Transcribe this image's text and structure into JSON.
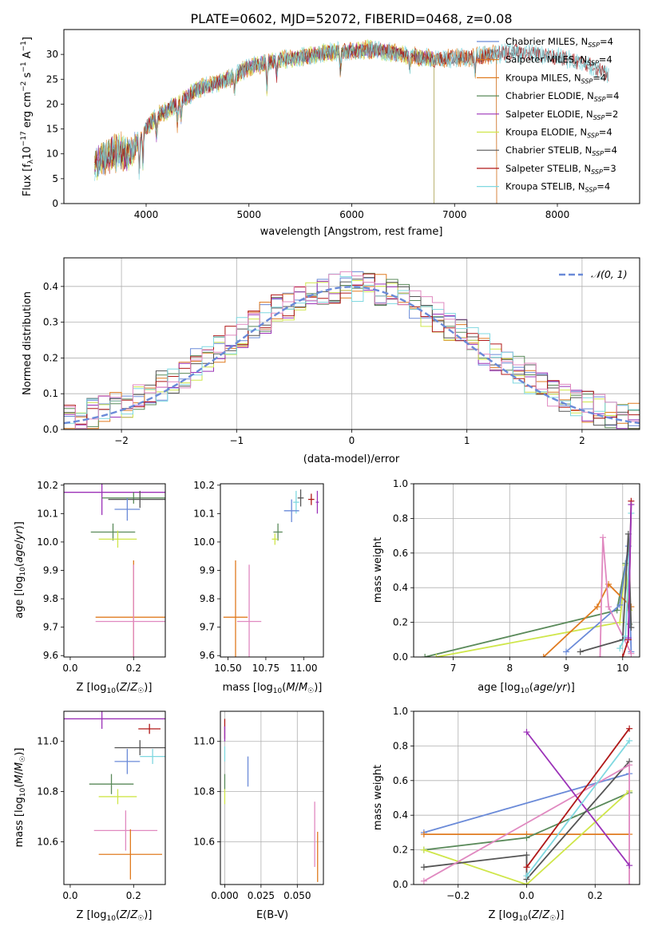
{
  "figure": {
    "title": "PLATE=0602, MJD=52072, FIBERID=0468, z=0.08"
  },
  "colors": {
    "c0": "#6a8ad8",
    "c1": "#e07b20",
    "c2": "#5a8a5a",
    "c3": "#9b32b8",
    "c4": "#cfe64a",
    "c5": "#555555",
    "c6": "#b01818",
    "c7": "#7fd8e0",
    "c8": "#e089c0",
    "grid": "#b0b0b0",
    "normal": "#6a8ad8"
  },
  "chart_data": [
    {
      "id": "spectrum",
      "type": "line",
      "xlabel": "wavelength [Angstrom, rest frame]",
      "ylabel": "Flux [f_λ10^-17 erg cm^-2 s^-1 A^-1]",
      "xlim": [
        3200,
        8800
      ],
      "ylim": [
        0,
        35
      ],
      "xticks": [
        4000,
        5000,
        6000,
        7000,
        8000
      ],
      "yticks": [
        0,
        5,
        10,
        15,
        20,
        25,
        30
      ],
      "grid": false,
      "legend_position": "top-right",
      "series": [
        {
          "name": "Chabrier MILES, N_SSP=4",
          "color_key": "c0",
          "end": 7410
        },
        {
          "name": "Salpeter MILES, N_SSP=4",
          "color_key": "c1",
          "end": 7410
        },
        {
          "name": "Kroupa MILES, N_SSP=4",
          "color_key": "c1",
          "end": 7410
        },
        {
          "name": "Chabrier ELODIE, N_SSP=4",
          "color_key": "c2",
          "end": 6800
        },
        {
          "name": "Salpeter ELODIE, N_SSP=2",
          "color_key": "c3",
          "end": 6800
        },
        {
          "name": "Kroupa ELODIE, N_SSP=4",
          "color_key": "c4",
          "end": 6800
        },
        {
          "name": "Chabrier STELIB, N_SSP=4",
          "color_key": "c5",
          "end": 8500
        },
        {
          "name": "Salpeter STELIB, N_SSP=3",
          "color_key": "c6",
          "end": 8500
        },
        {
          "name": "Kroupa STELIB, N_SSP=4",
          "color_key": "c7",
          "end": 8500
        }
      ],
      "continuum": [
        [
          3500,
          8.0
        ],
        [
          3700,
          10.5
        ],
        [
          3850,
          10.0
        ],
        [
          3950,
          14.0
        ],
        [
          4100,
          17.5
        ],
        [
          4300,
          20.0
        ],
        [
          4500,
          23.0
        ],
        [
          4800,
          25.0
        ],
        [
          5000,
          27.5
        ],
        [
          5200,
          28.5
        ],
        [
          5500,
          29.5
        ],
        [
          5800,
          30.5
        ],
        [
          6200,
          31.0
        ],
        [
          6500,
          30.0
        ],
        [
          6800,
          29.0
        ],
        [
          7200,
          29.5
        ],
        [
          7600,
          30.5
        ],
        [
          8000,
          29.5
        ],
        [
          8300,
          28.0
        ],
        [
          8500,
          26.0
        ]
      ],
      "absorption_lines": [
        [
          3934,
          7.0
        ],
        [
          3969,
          7.0
        ],
        [
          4102,
          4.0
        ],
        [
          4304,
          4.0
        ],
        [
          4340,
          3.5
        ],
        [
          4861,
          3.0
        ],
        [
          5175,
          5.0
        ],
        [
          5270,
          3.0
        ],
        [
          5890,
          4.0
        ],
        [
          6563,
          3.0
        ],
        [
          7200,
          3.0
        ]
      ]
    },
    {
      "id": "residual_hist",
      "type": "histogram",
      "xlabel": "(data-model)/error",
      "ylabel": "Normed distribution",
      "xlim": [
        -2.5,
        2.5
      ],
      "ylim": [
        0,
        0.48
      ],
      "xticks": [
        -2,
        -1,
        0,
        1,
        2
      ],
      "yticks": [
        0.0,
        0.1,
        0.2,
        0.3,
        0.4
      ],
      "grid": true,
      "legend_position": "top-right",
      "legend": [
        {
          "label": "N(0,1)",
          "style": "dashed"
        }
      ],
      "bin_edges_start": -2.5,
      "bin_width": 0.1,
      "series_color_keys": [
        "c0",
        "c1",
        "c2",
        "c3",
        "c4",
        "c5",
        "c6",
        "c7",
        "c8"
      ]
    },
    {
      "id": "age_vs_Z",
      "type": "scatter",
      "xlabel": "Z [log10(Z/Z☉)]",
      "ylabel": "age [log10(age/yr)]",
      "xlim": [
        -0.02,
        0.3
      ],
      "ylim": [
        9.595,
        10.205
      ],
      "xticks": [
        0.0,
        0.2
      ],
      "yticks": [
        9.6,
        9.7,
        9.8,
        9.9,
        10.0,
        10.1,
        10.2
      ],
      "grid": false,
      "points": [
        {
          "color_key": "c3",
          "x": 0.1,
          "xerr": 0.2,
          "y": 10.175,
          "yerr": 0.08
        },
        {
          "color_key": "c2",
          "x": 0.2,
          "xerr": 0.1,
          "y": 10.155,
          "yerr": 0.02
        },
        {
          "color_key": "c5",
          "x": 0.22,
          "xerr": 0.1,
          "y": 10.15,
          "yerr": 0.03
        },
        {
          "color_key": "c0",
          "x": 0.18,
          "xerr": 0.04,
          "y": 10.115,
          "yerr": 0.04
        },
        {
          "color_key": "c2",
          "x": 0.135,
          "xerr": 0.07,
          "y": 10.035,
          "yerr": 0.03
        },
        {
          "color_key": "c4",
          "x": 0.15,
          "xerr": 0.06,
          "y": 10.01,
          "yerr": 0.03
        },
        {
          "color_key": "c1",
          "x": 0.2,
          "xerr": 0.12,
          "y": 9.735,
          "yerr": 0.2
        },
        {
          "color_key": "c8",
          "x": 0.2,
          "xerr": 0.12,
          "y": 9.72,
          "yerr": 0.2
        }
      ]
    },
    {
      "id": "age_vs_mass",
      "type": "scatter",
      "xlabel": "mass [log10(M/M☉)]",
      "ylabel": "",
      "xlim": [
        10.45,
        11.13
      ],
      "ylim": [
        9.595,
        10.205
      ],
      "xticks": [
        10.5,
        10.75,
        11.0
      ],
      "yticks": [
        9.6,
        9.7,
        9.8,
        9.9,
        10.0,
        10.1,
        10.2
      ],
      "grid": false,
      "points": [
        {
          "color_key": "c5",
          "x": 10.98,
          "xerr": 0.02,
          "y": 10.155,
          "yerr": 0.03
        },
        {
          "color_key": "c6",
          "x": 11.05,
          "xerr": 0.02,
          "y": 10.15,
          "yerr": 0.02
        },
        {
          "color_key": "c3",
          "x": 11.09,
          "xerr": 0.01,
          "y": 10.14,
          "yerr": 0.04
        },
        {
          "color_key": "c7",
          "x": 10.95,
          "xerr": 0.02,
          "y": 10.14,
          "yerr": 0.04
        },
        {
          "color_key": "c0",
          "x": 10.92,
          "xerr": 0.05,
          "y": 10.11,
          "yerr": 0.04
        },
        {
          "color_key": "c2",
          "x": 10.83,
          "xerr": 0.03,
          "y": 10.035,
          "yerr": 0.03
        },
        {
          "color_key": "c4",
          "x": 10.81,
          "xerr": 0.02,
          "y": 10.01,
          "yerr": 0.02
        },
        {
          "color_key": "c1",
          "x": 10.55,
          "xerr": 0.08,
          "y": 9.735,
          "yerr": 0.2
        },
        {
          "color_key": "c8",
          "x": 10.64,
          "xerr": 0.08,
          "y": 9.72,
          "yerr": 0.2
        }
      ]
    },
    {
      "id": "weight_vs_age",
      "type": "line",
      "xlabel": "age [log10(age/yr)]",
      "ylabel": "mass weight",
      "xlim": [
        6.3,
        10.3
      ],
      "ylim": [
        0.0,
        1.0
      ],
      "xticks": [
        7,
        8,
        9,
        10
      ],
      "yticks": [
        0.0,
        0.2,
        0.4,
        0.6,
        0.8,
        1.0
      ],
      "grid": true,
      "series": [
        {
          "color_key": "c2",
          "x": [
            6.5,
            9.9,
            10.05,
            10.12
          ],
          "y": [
            0.0,
            0.27,
            0.54,
            0.19
          ]
        },
        {
          "color_key": "c4",
          "x": [
            6.7,
            9.95,
            10.05,
            10.12
          ],
          "y": [
            0.0,
            0.2,
            0.53,
            0.27
          ]
        },
        {
          "color_key": "c1",
          "x": [
            8.6,
            9.55,
            9.75,
            10.15
          ],
          "y": [
            0.0,
            0.29,
            0.42,
            0.29
          ]
        },
        {
          "color_key": "c0",
          "x": [
            9.0,
            9.95,
            10.1,
            10.15
          ],
          "y": [
            0.03,
            0.3,
            0.64,
            0.03
          ]
        },
        {
          "color_key": "c8",
          "x": [
            9.6,
            9.65,
            9.75,
            10.15
          ],
          "y": [
            0.0,
            0.69,
            0.29,
            0.02
          ]
        },
        {
          "color_key": "c5",
          "x": [
            9.25,
            10.0,
            10.1,
            10.15
          ],
          "y": [
            0.03,
            0.1,
            0.71,
            0.17
          ]
        },
        {
          "color_key": "c7",
          "x": [
            9.95,
            10.05,
            10.15
          ],
          "y": [
            0.05,
            0.12,
            0.83
          ]
        },
        {
          "color_key": "c6",
          "x": [
            10.0,
            10.1,
            10.15
          ],
          "y": [
            0.0,
            0.1,
            0.9
          ]
        },
        {
          "color_key": "c3",
          "x": [
            10.1,
            10.15
          ],
          "y": [
            0.11,
            0.88
          ]
        }
      ]
    },
    {
      "id": "mass_vs_Z",
      "type": "scatter",
      "xlabel": "Z [log10(Z/Z☉)]",
      "ylabel": "mass [log10(M/M☉)]",
      "xlim": [
        -0.02,
        0.3
      ],
      "ylim": [
        10.43,
        11.12
      ],
      "xticks": [
        0.0,
        0.2
      ],
      "yticks": [
        10.6,
        10.8,
        11.0
      ],
      "grid": false,
      "points": [
        {
          "color_key": "c3",
          "x": 0.1,
          "xerr": 0.2,
          "y": 11.09,
          "yerr": 0.04
        },
        {
          "color_key": "c6",
          "x": 0.25,
          "xerr": 0.035,
          "y": 11.05,
          "yerr": 0.02
        },
        {
          "color_key": "c5",
          "x": 0.22,
          "xerr": 0.08,
          "y": 10.975,
          "yerr": 0.03
        },
        {
          "color_key": "c7",
          "x": 0.26,
          "xerr": 0.04,
          "y": 10.94,
          "yerr": 0.03
        },
        {
          "color_key": "c0",
          "x": 0.18,
          "xerr": 0.04,
          "y": 10.92,
          "yerr": 0.05
        },
        {
          "color_key": "c2",
          "x": 0.13,
          "xerr": 0.07,
          "y": 10.83,
          "yerr": 0.04
        },
        {
          "color_key": "c4",
          "x": 0.15,
          "xerr": 0.06,
          "y": 10.78,
          "yerr": 0.03
        },
        {
          "color_key": "c8",
          "x": 0.175,
          "xerr": 0.1,
          "y": 10.645,
          "yerr": 0.08
        },
        {
          "color_key": "c1",
          "x": 0.19,
          "xerr": 0.1,
          "y": 10.55,
          "yerr": 0.1
        }
      ]
    },
    {
      "id": "mass_vs_EBV",
      "type": "scatter",
      "xlabel": "E(B-V)",
      "ylabel": "",
      "xlim": [
        -0.003,
        0.068
      ],
      "ylim": [
        10.43,
        11.12
      ],
      "xticks": [
        0.0,
        0.025,
        0.05
      ],
      "yticks": [
        10.6,
        10.8,
        11.0
      ],
      "grid": true,
      "points": [
        {
          "color_key": "c6",
          "x": 0.0,
          "xerr": 0.0,
          "y": 11.05,
          "yerr": 0.04
        },
        {
          "color_key": "c3",
          "x": 0.0,
          "xerr": 0.0,
          "y": 11.03,
          "yerr": 0.03
        },
        {
          "color_key": "c7",
          "x": 0.0,
          "xerr": 0.0,
          "y": 10.95,
          "yerr": 0.03
        },
        {
          "color_key": "c2",
          "x": 0.0,
          "xerr": 0.0,
          "y": 10.84,
          "yerr": 0.03
        },
        {
          "color_key": "c4",
          "x": 0.0,
          "xerr": 0.0,
          "y": 10.78,
          "yerr": 0.03
        },
        {
          "color_key": "c0",
          "x": 0.016,
          "xerr": 0.0,
          "y": 10.88,
          "yerr": 0.06
        },
        {
          "color_key": "c8",
          "x": 0.062,
          "xerr": 0.0,
          "y": 10.63,
          "yerr": 0.13
        },
        {
          "color_key": "c1",
          "x": 0.064,
          "xerr": 0.0,
          "y": 10.54,
          "yerr": 0.1
        }
      ]
    },
    {
      "id": "weight_vs_Z",
      "type": "line",
      "xlabel": "Z [log10(Z/Z☉)]",
      "ylabel": "mass weight",
      "xlim": [
        -0.33,
        0.33
      ],
      "ylim": [
        0.0,
        1.0
      ],
      "xticks": [
        -0.2,
        0.0,
        0.2
      ],
      "yticks": [
        0.0,
        0.2,
        0.4,
        0.6,
        0.8,
        1.0
      ],
      "grid": true,
      "series": [
        {
          "color_key": "c0",
          "x": [
            -0.3,
            0.3
          ],
          "y": [
            0.3,
            0.64
          ]
        },
        {
          "color_key": "c1",
          "x": [
            -0.3,
            0.0,
            0.3
          ],
          "y": [
            0.29,
            0.29,
            0.29
          ]
        },
        {
          "color_key": "c2",
          "x": [
            -0.3,
            0.0,
            0.3
          ],
          "y": [
            0.2,
            0.27,
            0.53
          ]
        },
        {
          "color_key": "c4",
          "x": [
            -0.3,
            0.0,
            0.3
          ],
          "y": [
            0.2,
            0.0,
            0.54
          ]
        },
        {
          "color_key": "c5",
          "x": [
            -0.3,
            0.0,
            0.0,
            0.3
          ],
          "y": [
            0.1,
            0.17,
            0.03,
            0.71
          ]
        },
        {
          "color_key": "c8",
          "x": [
            -0.3,
            0.3,
            0.3
          ],
          "y": [
            0.02,
            0.69,
            0.0
          ]
        },
        {
          "color_key": "c3",
          "x": [
            0.0,
            0.3
          ],
          "y": [
            0.88,
            0.11
          ]
        },
        {
          "color_key": "c6",
          "x": [
            0.0,
            0.3
          ],
          "y": [
            0.1,
            0.9
          ]
        },
        {
          "color_key": "c7",
          "x": [
            0.0,
            0.3
          ],
          "y": [
            0.05,
            0.83
          ]
        }
      ]
    }
  ]
}
